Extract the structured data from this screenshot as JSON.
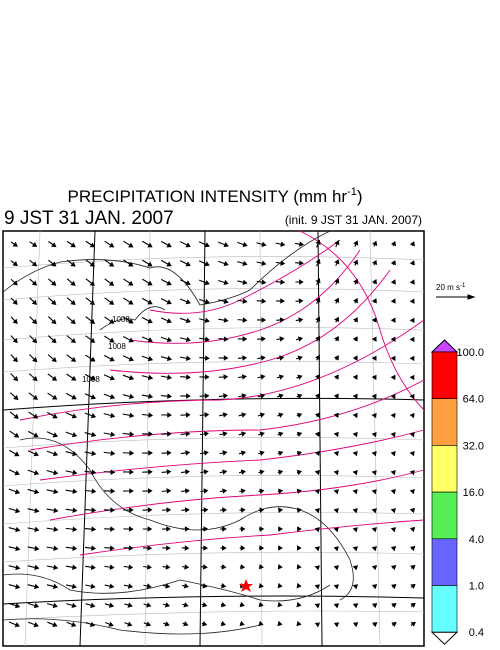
{
  "header": {
    "title": "PRECIPITATION INTENSITY (mm hr",
    "title_exponent": "-1",
    "title_close": ")",
    "valid_time": "9 JST 31 JAN. 2007",
    "init_time": "(init. 9 JST 31 JAN. 2007)"
  },
  "wind_scale": {
    "label": "20 m s",
    "exponent": "-1"
  },
  "isobar_labels": [
    "1008",
    "1008",
    "1008"
  ],
  "colorbar": {
    "levels": [
      {
        "label": "100.0",
        "color": "#ff0000"
      },
      {
        "label": "64.0",
        "color": "#ffa040"
      },
      {
        "label": "32.0",
        "color": "#ffff66"
      },
      {
        "label": "16.0",
        "color": "#55ee55"
      },
      {
        "label": "4.0",
        "color": "#6666ff"
      },
      {
        "label": "1.0",
        "color": "#66ffff"
      },
      {
        "label": "0.4",
        "color": "#ffffff"
      }
    ],
    "top_color": "#cc44ff"
  }
}
